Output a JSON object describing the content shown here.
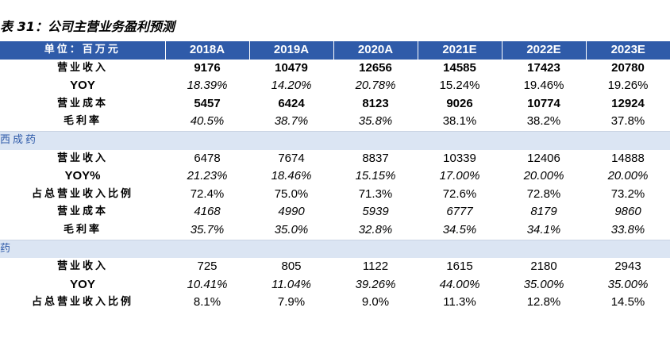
{
  "title": "表 31：公司主营业务盈利预测",
  "header": {
    "unit_label": "单位：百万元",
    "years": [
      "2018A",
      "2019A",
      "2020A",
      "2021E",
      "2022E",
      "2023E"
    ]
  },
  "company": {
    "rows": [
      {
        "label": "营业收入",
        "values": [
          "9176",
          "10479",
          "12656",
          "14585",
          "17423",
          "20780"
        ]
      },
      {
        "label": "YOY",
        "values": [
          "18.39%",
          "14.20%",
          "20.78%",
          "15.24%",
          "19.46%",
          "19.26%"
        ]
      },
      {
        "label": "营业成本",
        "values": [
          "5457",
          "6424",
          "8123",
          "9026",
          "10774",
          "12924"
        ]
      },
      {
        "label": "毛利率",
        "values": [
          "40.5%",
          "38.7%",
          "35.8%",
          "38.1%",
          "38.2%",
          "37.8%"
        ]
      }
    ]
  },
  "western": {
    "section_label": "西成药",
    "rows": [
      {
        "label": "营业收入",
        "values": [
          "6478",
          "7674",
          "8837",
          "10339",
          "12406",
          "14888"
        ]
      },
      {
        "label": "YOY%",
        "values": [
          "21.23%",
          "18.46%",
          "15.15%",
          "17.00%",
          "20.00%",
          "20.00%"
        ]
      },
      {
        "label": "占总营业收入比例",
        "values": [
          "72.4%",
          "75.0%",
          "71.3%",
          "72.6%",
          "72.8%",
          "73.2%"
        ]
      },
      {
        "label": "营业成本",
        "values": [
          "4168",
          "4990",
          "5939",
          "6777",
          "8179",
          "9860"
        ]
      },
      {
        "label": "毛利率",
        "values": [
          "35.7%",
          "35.0%",
          "32.8%",
          "34.5%",
          "34.1%",
          "33.8%"
        ]
      }
    ]
  },
  "other": {
    "section_label": "药",
    "rows": [
      {
        "label": "营业收入",
        "values": [
          "725",
          "805",
          "1122",
          "1615",
          "2180",
          "2943"
        ]
      },
      {
        "label": "YOY",
        "values": [
          "10.41%",
          "11.04%",
          "39.26%",
          "44.00%",
          "35.00%",
          "35.00%"
        ]
      },
      {
        "label": "占总营业收入比例",
        "values": [
          "8.1%",
          "7.9%",
          "9.0%",
          "11.3%",
          "12.8%",
          "14.5%"
        ]
      }
    ]
  }
}
